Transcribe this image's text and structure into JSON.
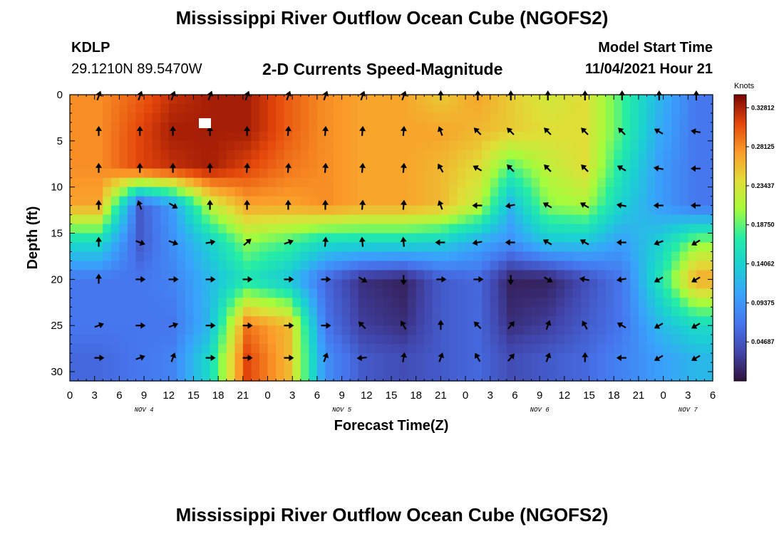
{
  "header": {
    "title": "Mississippi River Outflow Ocean Cube (NGOFS2)",
    "station": "KDLP",
    "coordinates": "29.1210N  89.5470W",
    "subtitle": "2-D Currents Speed-Magnitude",
    "model_start_label": "Model Start Time",
    "model_start_value": "11/04/2021 Hour 21"
  },
  "footer": {
    "title": "Mississippi River Outflow Ocean Cube (NGOFS2)"
  },
  "chart_data": {
    "type": "heatmap",
    "title": "2-D Currents Speed-Magnitude",
    "xlabel": "Forecast Time(Z)",
    "ylabel": "Depth (ft)",
    "x_hours_from_nov4_00z": [
      0,
      78
    ],
    "x_tick_labels": [
      "0",
      "3",
      "6",
      "9",
      "12",
      "15",
      "18",
      "21",
      "0",
      "3",
      "6",
      "9",
      "12",
      "15",
      "18",
      "21",
      "0",
      "3",
      "6",
      "9",
      "12",
      "15",
      "18",
      "21",
      "0",
      "3",
      "6"
    ],
    "day_labels": [
      "NOV 4",
      "NOV 5",
      "NOV 6",
      "NOV 7"
    ],
    "y_ticks": [
      0,
      5,
      10,
      15,
      20,
      25,
      30
    ],
    "ylim": [
      0,
      31
    ],
    "y_reversed": true,
    "colorbar": {
      "unit": "Knots",
      "ticks": [
        "0.32812",
        "0.28125",
        "0.23437",
        "0.18750",
        "0.14062",
        "0.09375",
        "0.04687"
      ],
      "range": [
        0.0,
        0.34375
      ],
      "colormap": "turbo"
    },
    "vector_times_hours": [
      3.5,
      8.5,
      12.5,
      17,
      21.5,
      26.5,
      31,
      35.5,
      40.5,
      45,
      49.5,
      53.5,
      58,
      62.5,
      67,
      71.5,
      76
    ],
    "vector_depths_ft": [
      0,
      4,
      8,
      12,
      16,
      20,
      25,
      28.5
    ],
    "speed_knots_nodes": [
      [
        0.28,
        0.3,
        0.32,
        0.33,
        0.33,
        0.3,
        0.28,
        0.27,
        0.27,
        0.25,
        0.27,
        0.25,
        0.23,
        0.24,
        0.18,
        0.12,
        0.07
      ],
      [
        0.28,
        0.31,
        0.33,
        0.33,
        0.33,
        0.3,
        0.28,
        0.27,
        0.27,
        0.27,
        0.26,
        0.25,
        0.24,
        0.24,
        0.18,
        0.11,
        0.07
      ],
      [
        0.28,
        0.31,
        0.32,
        0.33,
        0.31,
        0.29,
        0.28,
        0.27,
        0.27,
        0.26,
        0.24,
        0.18,
        0.22,
        0.24,
        0.16,
        0.1,
        0.07
      ],
      [
        0.27,
        0.05,
        0.1,
        0.22,
        0.27,
        0.27,
        0.28,
        0.27,
        0.27,
        0.26,
        0.22,
        0.12,
        0.2,
        0.21,
        0.14,
        0.1,
        0.07
      ],
      [
        0.15,
        0.05,
        0.09,
        0.14,
        0.2,
        0.18,
        0.15,
        0.15,
        0.15,
        0.14,
        0.11,
        0.09,
        0.13,
        0.13,
        0.1,
        0.14,
        0.2
      ],
      [
        0.07,
        0.07,
        0.08,
        0.12,
        0.16,
        0.13,
        0.06,
        0.02,
        0.01,
        0.05,
        0.06,
        0.01,
        0.01,
        0.04,
        0.07,
        0.16,
        0.27
      ],
      [
        0.07,
        0.07,
        0.07,
        0.12,
        0.29,
        0.26,
        0.07,
        0.03,
        0.02,
        0.05,
        0.06,
        0.02,
        0.03,
        0.05,
        0.07,
        0.12,
        0.15
      ],
      [
        0.06,
        0.07,
        0.08,
        0.15,
        0.31,
        0.26,
        0.09,
        0.05,
        0.04,
        0.05,
        0.06,
        0.04,
        0.05,
        0.06,
        0.08,
        0.1,
        0.12
      ]
    ],
    "direction_deg_nodes": [
      [
        200,
        200,
        200,
        200,
        200,
        200,
        200,
        200,
        200,
        180,
        180,
        180,
        180,
        180,
        180,
        180,
        180
      ],
      [
        180,
        180,
        180,
        180,
        180,
        185,
        185,
        185,
        185,
        160,
        135,
        135,
        135,
        135,
        135,
        120,
        100
      ],
      [
        180,
        180,
        180,
        180,
        185,
        185,
        185,
        185,
        185,
        150,
        120,
        135,
        135,
        135,
        120,
        100,
        90
      ],
      [
        180,
        160,
        300,
        180,
        180,
        180,
        180,
        185,
        185,
        160,
        90,
        80,
        120,
        120,
        100,
        90,
        90
      ],
      [
        180,
        290,
        290,
        260,
        230,
        250,
        185,
        175,
        175,
        90,
        80,
        90,
        120,
        120,
        90,
        70,
        60
      ],
      [
        180,
        270,
        270,
        270,
        270,
        270,
        270,
        300,
        0,
        270,
        270,
        0,
        300,
        100,
        80,
        60,
        60
      ],
      [
        250,
        270,
        250,
        270,
        270,
        270,
        270,
        135,
        150,
        180,
        135,
        220,
        200,
        150,
        120,
        60,
        60
      ],
      [
        270,
        250,
        200,
        270,
        270,
        270,
        200,
        85,
        190,
        200,
        150,
        220,
        200,
        180,
        90,
        60,
        60
      ]
    ]
  }
}
